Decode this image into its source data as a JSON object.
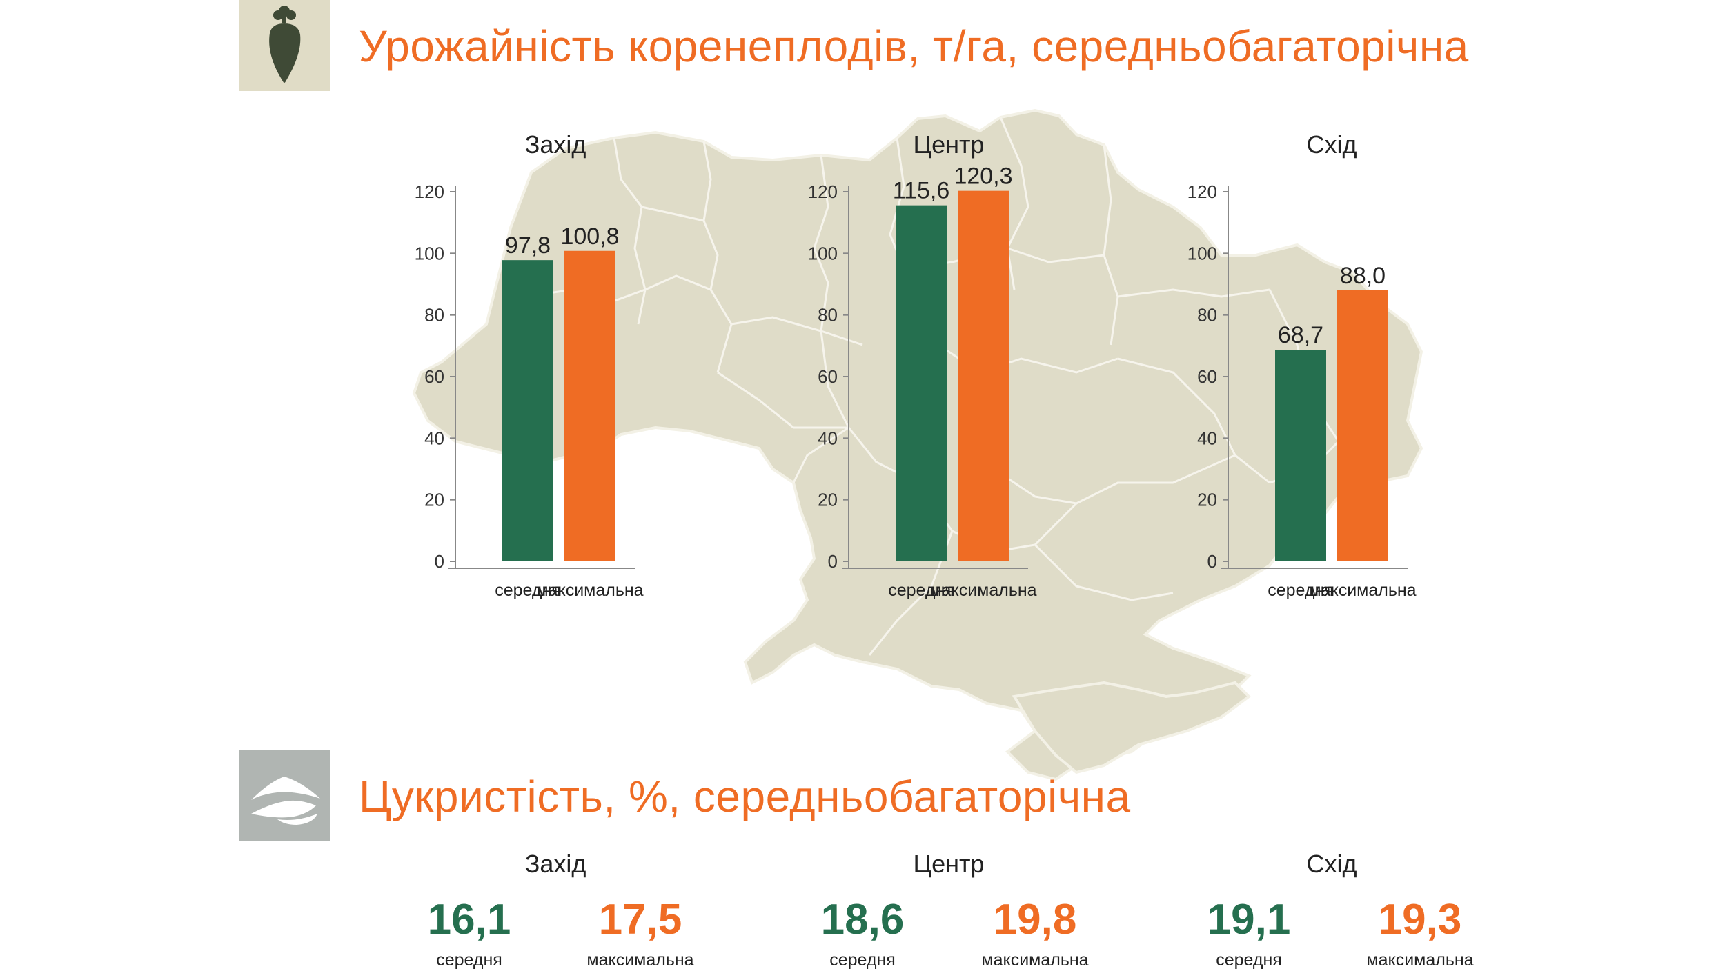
{
  "yield_section": {
    "title": "Урожайність коренеплодів, т/га, середньобагаторічна",
    "icon": "sugar-beet-icon"
  },
  "sugar_section": {
    "title": "Цукристість, %, середньобагаторічна",
    "icon": "sugar-pile-icon",
    "regions": [
      {
        "name": "Захід",
        "avg_value": "16,1",
        "avg_label": "середня",
        "max_value": "17,5",
        "max_label": "максимальна"
      },
      {
        "name": "Центр",
        "avg_value": "18,6",
        "avg_label": "середня",
        "max_value": "19,8",
        "max_label": "максимальна"
      },
      {
        "name": "Схід",
        "avg_value": "19,1",
        "avg_label": "середня",
        "max_value": "19,3",
        "max_label": "максимальна"
      }
    ]
  },
  "colors": {
    "avg": "#256f4f",
    "max": "#ef6c24",
    "map": "#dfdcc8",
    "title": "#ef6c24"
  },
  "chart_data": [
    {
      "type": "bar",
      "title": "Захід",
      "categories": [
        "середня",
        "максимальна"
      ],
      "values": [
        97.8,
        100.8
      ],
      "value_labels": [
        "97,8",
        "100,8"
      ],
      "yticks": [
        0,
        20,
        40,
        60,
        80,
        100,
        120
      ],
      "ylim": [
        0,
        120
      ],
      "grid": false
    },
    {
      "type": "bar",
      "title": "Центр",
      "categories": [
        "середня",
        "максимальна"
      ],
      "values": [
        115.6,
        120.3
      ],
      "value_labels": [
        "115,6",
        "120,3"
      ],
      "yticks": [
        0,
        20,
        40,
        60,
        80,
        100,
        120
      ],
      "ylim": [
        0,
        120
      ],
      "grid": false
    },
    {
      "type": "bar",
      "title": "Схід",
      "categories": [
        "середня",
        "максимальна"
      ],
      "values": [
        68.7,
        88.0
      ],
      "value_labels": [
        "68,7",
        "88,0"
      ],
      "yticks": [
        0,
        20,
        40,
        60,
        80,
        100,
        120
      ],
      "ylim": [
        0,
        120
      ],
      "grid": false
    }
  ]
}
